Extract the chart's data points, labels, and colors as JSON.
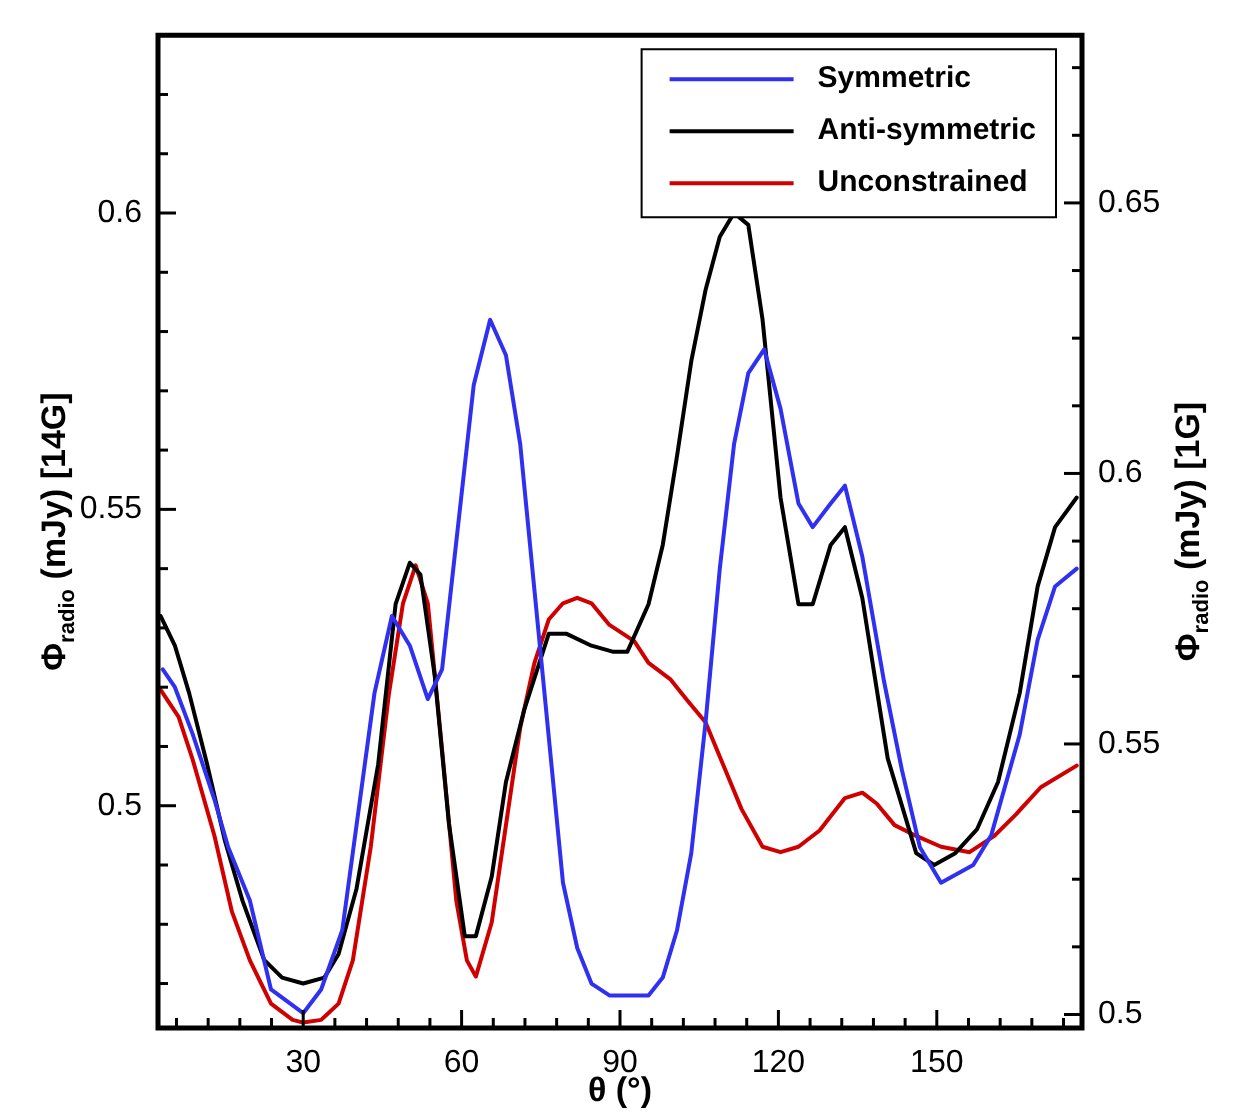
{
  "chart_data": {
    "type": "line",
    "xlabel": "θ (°)",
    "ylabel": "Φ$_{radio}$ (mJy) [14G]",
    "y2label": "Φ$_{radio}$ (mJy) [1G]",
    "xlim": [
      2.5,
      177.5
    ],
    "xticks": [
      {
        "value": 6,
        "label": null
      },
      {
        "value": 12,
        "label": null
      },
      {
        "value": 18,
        "label": null
      },
      {
        "value": 24,
        "label": null
      },
      30,
      {
        "value": 36,
        "label": null
      },
      {
        "value": 42,
        "label": null
      },
      {
        "value": 48,
        "label": null
      },
      {
        "value": 54,
        "label": null
      },
      60,
      {
        "value": 66,
        "label": null
      },
      {
        "value": 72,
        "label": null
      },
      {
        "value": 78,
        "label": null
      },
      {
        "value": 84,
        "label": null
      },
      90,
      {
        "value": 96,
        "label": null
      },
      {
        "value": 102,
        "label": null
      },
      {
        "value": 108,
        "label": null
      },
      {
        "value": 114,
        "label": null
      },
      120,
      {
        "value": 126,
        "label": null
      },
      {
        "value": 132,
        "label": null
      },
      {
        "value": 138,
        "label": null
      },
      {
        "value": 144,
        "label": null
      },
      150,
      {
        "value": 156,
        "label": null
      },
      {
        "value": 162,
        "label": null
      },
      {
        "value": 168,
        "label": null
      },
      {
        "value": 174,
        "label": null
      }
    ],
    "ylim": [
      0.4625,
      0.63
    ],
    "yticks": [
      {
        "value": 0.47,
        "label": null
      },
      {
        "value": 0.48,
        "label": null
      },
      {
        "value": 0.49,
        "label": null
      },
      0.5,
      {
        "value": 0.51,
        "label": null
      },
      {
        "value": 0.52,
        "label": null
      },
      {
        "value": 0.53,
        "label": null
      },
      {
        "value": 0.54,
        "label": null
      },
      0.55,
      {
        "value": 0.56,
        "label": null
      },
      {
        "value": 0.57,
        "label": null
      },
      {
        "value": 0.58,
        "label": null
      },
      {
        "value": 0.59,
        "label": null
      },
      0.6,
      {
        "value": 0.61,
        "label": null
      },
      {
        "value": 0.62,
        "label": null
      }
    ],
    "y2lim": [
      0.4975,
      0.681
    ],
    "y2ticks": [
      0.5,
      {
        "value": 0.5125,
        "label": null
      },
      {
        "value": 0.525,
        "label": null
      },
      {
        "value": 0.5375,
        "label": null
      },
      0.55,
      {
        "value": 0.5625,
        "label": null
      },
      {
        "value": 0.575,
        "label": null
      },
      {
        "value": 0.5875,
        "label": null
      },
      0.6,
      {
        "value": 0.6125,
        "label": null
      },
      {
        "value": 0.625,
        "label": null
      },
      {
        "value": 0.6375,
        "label": null
      },
      0.65,
      {
        "value": 0.6625,
        "label": null
      },
      {
        "value": 0.675,
        "label": null
      }
    ],
    "grid": false,
    "legend": "top right",
    "marker": "none",
    "line_style": "solid",
    "series": [
      {
        "name": "Symmetric",
        "color": "#3030f0",
        "x": [
          3.4,
          5.7,
          9.1,
          13.2,
          15.8,
          19.9,
          23.9,
          30,
          33.4,
          37.4,
          43.5,
          46.8,
          50.2,
          53.6,
          56.3,
          62.3,
          65.4,
          68.4,
          71.1,
          79.2,
          81.9,
          84.6,
          88,
          92,
          95.4,
          98.1,
          100.8,
          103.5,
          106.2,
          108.9,
          111.6,
          114.3,
          117.3,
          120.4,
          123.8,
          126.5,
          129.9,
          132.6,
          135.9,
          140,
          143.4,
          146.8,
          150.8,
          156.9,
          160.3,
          165.7,
          169.1,
          172.4,
          176.5
        ],
        "values": [
          0.523,
          0.52,
          0.512,
          0.501,
          0.493,
          0.484,
          0.469,
          0.465,
          0.469,
          0.479,
          0.519,
          0.532,
          0.527,
          0.518,
          0.523,
          0.571,
          0.582,
          0.576,
          0.561,
          0.487,
          0.476,
          0.47,
          0.468,
          0.468,
          0.468,
          0.471,
          0.479,
          0.492,
          0.514,
          0.54,
          0.561,
          0.573,
          0.577,
          0.567,
          0.551,
          0.547,
          0.551,
          0.554,
          0.542,
          0.521,
          0.506,
          0.493,
          0.487,
          0.49,
          0.495,
          0.512,
          0.528,
          0.537,
          0.54
        ]
      },
      {
        "name": "Anti-symmetric",
        "color": "#000000",
        "x": [
          3,
          5.7,
          8.4,
          11.8,
          15.2,
          18.5,
          22.6,
          26,
          30,
          34,
          36.7,
          40.1,
          44.2,
          47.5,
          50.2,
          52.2,
          54.9,
          57.6,
          60.6,
          62.7,
          65.7,
          68.4,
          71.8,
          76.5,
          79.9,
          84.6,
          88.6,
          91.4,
          95.4,
          98.1,
          100.8,
          103.5,
          106.2,
          108.9,
          111.6,
          114.3,
          117,
          120.4,
          123.8,
          126.5,
          129.9,
          132.6,
          135.9,
          140.7,
          146.1,
          149.5,
          153.5,
          157.6,
          161.6,
          165.7,
          169.1,
          172.4,
          176.5
        ],
        "values": [
          0.532,
          0.527,
          0.519,
          0.507,
          0.494,
          0.484,
          0.474,
          0.471,
          0.47,
          0.471,
          0.475,
          0.486,
          0.507,
          0.534,
          0.541,
          0.539,
          0.522,
          0.497,
          0.478,
          0.478,
          0.488,
          0.504,
          0.516,
          0.529,
          0.529,
          0.527,
          0.526,
          0.526,
          0.534,
          0.544,
          0.559,
          0.575,
          0.587,
          0.596,
          0.6,
          0.598,
          0.582,
          0.552,
          0.534,
          0.534,
          0.544,
          0.547,
          0.535,
          0.508,
          0.492,
          0.49,
          0.492,
          0.496,
          0.504,
          0.519,
          0.537,
          0.547,
          0.552
        ]
      },
      {
        "name": "Unconstrained",
        "color": "#d00000",
        "axis": "y2",
        "x": [
          3,
          6.4,
          9.1,
          13.2,
          16.5,
          19.9,
          23.9,
          28,
          30,
          33.4,
          36.7,
          39.4,
          42.8,
          46.2,
          48.9,
          51.3,
          53.6,
          56.3,
          59,
          61,
          62.7,
          65.7,
          68.4,
          71.1,
          73.8,
          76.5,
          79.2,
          81.9,
          84.6,
          88,
          92.7,
          95.4,
          99.5,
          102.8,
          106.2,
          109.6,
          113,
          117,
          120.4,
          123.8,
          127.8,
          132.6,
          135.9,
          138.6,
          142,
          146.1,
          150.8,
          156.2,
          160.9,
          165,
          169.7,
          176.5
        ],
        "values": [
          0.56,
          0.555,
          0.547,
          0.533,
          0.519,
          0.51,
          0.502,
          0.499,
          0.4985,
          0.499,
          0.502,
          0.51,
          0.531,
          0.559,
          0.576,
          0.583,
          0.576,
          0.549,
          0.521,
          0.51,
          0.507,
          0.517,
          0.535,
          0.553,
          0.565,
          0.573,
          0.576,
          0.577,
          0.576,
          0.572,
          0.569,
          0.565,
          0.562,
          0.558,
          0.554,
          0.546,
          0.538,
          0.531,
          0.53,
          0.531,
          0.534,
          0.54,
          0.541,
          0.539,
          0.535,
          0.533,
          0.531,
          0.53,
          0.533,
          0.537,
          0.542,
          0.546
        ]
      }
    ]
  }
}
